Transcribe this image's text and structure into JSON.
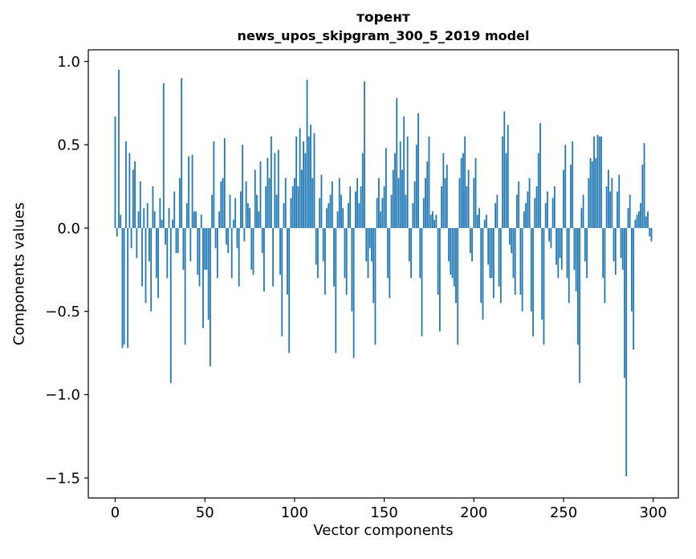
{
  "title_line1": "торент",
  "title_line2": "news_upos_skipgram_300_5_2019 model",
  "chart_data": {
    "type": "bar",
    "title": "торент",
    "subtitle": "news_upos_skipgram_300_5_2019 model",
    "xlabel": "Vector components",
    "ylabel": "Components values",
    "xlim": [
      -15,
      314
    ],
    "ylim": [
      -1.62,
      1.07
    ],
    "xticks": [
      0,
      50,
      100,
      150,
      200,
      250,
      300
    ],
    "yticks": [
      1.0,
      0.5,
      0.0,
      -0.5,
      -1.0,
      -1.5
    ],
    "bar_color": "#1f77b4",
    "axis_color": "#000000",
    "grid": false,
    "legend_position": "none",
    "values": [
      0.67,
      -0.05,
      0.95,
      0.08,
      -0.72,
      -0.7,
      0.52,
      -0.72,
      0.45,
      -0.12,
      0.35,
      0.4,
      -0.18,
      0.1,
      0.28,
      -0.35,
      0.12,
      -0.45,
      0.15,
      -0.2,
      -0.5,
      0.25,
      0.1,
      -0.3,
      -0.42,
      0.18,
      0.05,
      0.87,
      -0.1,
      -0.3,
      0.12,
      -0.93,
      0.05,
      0.22,
      -0.15,
      -0.15,
      0.3,
      0.9,
      -0.25,
      -0.7,
      0.15,
      0.43,
      -0.2,
      0.44,
      0.1,
      0.1,
      -0.28,
      -0.35,
      0.08,
      -0.6,
      -0.25,
      -0.25,
      -0.55,
      -0.83,
      0.2,
      0.52,
      -0.12,
      -0.3,
      0.1,
      0.28,
      0.3,
      0.54,
      -0.1,
      -0.15,
      0.2,
      -0.3,
      0.05,
      0.18,
      -0.12,
      -0.35,
      0.22,
      0.5,
      -0.08,
      0.28,
      0.15,
      0.12,
      -0.25,
      -0.28,
      0.35,
      0.2,
      0.1,
      0.4,
      -0.15,
      -0.38,
      0.25,
      0.42,
      0.3,
      0.55,
      -0.35,
      0.45,
      0.2,
      0.47,
      -0.28,
      -0.65,
      0.15,
      0.3,
      -0.4,
      -0.75,
      0.18,
      0.25,
      0.3,
      0.55,
      0.25,
      0.6,
      0.35,
      0.52,
      0.45,
      0.89,
      0.55,
      0.62,
      0.3,
      0.57,
      -0.22,
      -0.3,
      0.18,
      0.32,
      -0.2,
      -0.4,
      0.12,
      0.15,
      0.2,
      0.28,
      -0.35,
      -0.75,
      0.1,
      0.3,
      0.2,
      0.12,
      -0.3,
      -0.4,
      0.15,
      0.25,
      -0.5,
      -0.78,
      0.22,
      0.3,
      0.15,
      0.25,
      0.45,
      0.88,
      -0.2,
      -0.3,
      -0.12,
      -0.2,
      -0.45,
      -0.7,
      0.18,
      0.3,
      0.1,
      0.18,
      0.25,
      0.48,
      -0.3,
      -0.42,
      0.2,
      0.35,
      0.45,
      0.78,
      0.3,
      0.52,
      0.35,
      0.67,
      0.2,
      0.55,
      -0.2,
      -0.3,
      0.15,
      0.28,
      0.5,
      0.69,
      -0.3,
      -0.65,
      0.18,
      0.3,
      0.4,
      0.55,
      0.08,
      0.1,
      0.05,
      0.08,
      -0.4,
      -0.62,
      0.25,
      0.45,
      0.3,
      0.38,
      -0.2,
      -0.28,
      -0.3,
      -0.35,
      -0.45,
      -0.7,
      0.3,
      0.42,
      0.45,
      0.55,
      0.25,
      0.35,
      -0.15,
      -0.2,
      0.3,
      0.42,
      0.08,
      0.12,
      -0.45,
      -0.55,
      0.05,
      0.08,
      -0.22,
      -0.3,
      -0.3,
      -0.42,
      0.15,
      0.2,
      -0.35,
      -0.45,
      0.55,
      0.7,
      0.45,
      0.62,
      -0.1,
      -0.15,
      -0.3,
      -0.4,
      0.2,
      0.28,
      -0.4,
      -0.5,
      0.1,
      0.15,
      0.22,
      0.3,
      -0.5,
      -0.65,
      0.18,
      0.25,
      0.45,
      0.63,
      -0.55,
      -0.7,
      0.15,
      0.22,
      -0.08,
      -0.12,
      0.18,
      0.25,
      -0.22,
      -0.3,
      -0.18,
      -0.25,
      0.35,
      0.5,
      -0.3,
      -0.45,
      0.38,
      0.52,
      -0.25,
      -0.38,
      -0.7,
      -0.93,
      0.12,
      0.2,
      -0.2,
      -0.3,
      0.3,
      0.42,
      0.4,
      0.55,
      0.42,
      0.56,
      0.55,
      0.55,
      -0.3,
      -0.45,
      0.25,
      0.35,
      0.22,
      0.3,
      -0.2,
      -0.28,
      0.22,
      0.32,
      -0.18,
      -0.25,
      -0.9,
      -1.49,
      0.12,
      0.2,
      -0.5,
      -0.73,
      0.05,
      0.08,
      0.1,
      0.15,
      0.38,
      0.51,
      0.07,
      0.1,
      -0.05,
      -0.08
    ]
  }
}
